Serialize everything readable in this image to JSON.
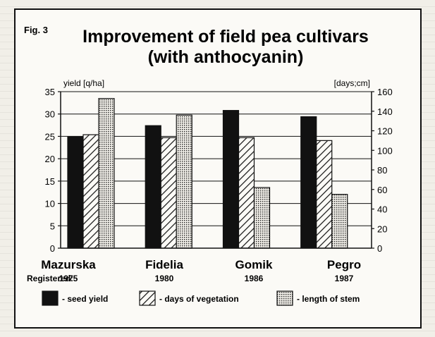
{
  "figure_label": "Fig. 3",
  "colors": {
    "ink": "#111111",
    "paper": "#fbfaf6"
  },
  "chart_data": {
    "type": "bar",
    "title": [
      "Improvement of field pea cultivars",
      "(with anthocyanin)"
    ],
    "categories": [
      "Mazurska",
      "Fidelia",
      "Gomik",
      "Pegro"
    ],
    "registered_label": "Registered:",
    "years": [
      "1975",
      "1980",
      "1986",
      "1987"
    ],
    "ylabel_left": "yield [q/ha]",
    "ylabel_right": "[days;cm]",
    "ylim_left": [
      0,
      35
    ],
    "ylim_right": [
      0,
      160
    ],
    "yticks_left": [
      0,
      5,
      10,
      15,
      20,
      25,
      30,
      35
    ],
    "yticks_right": [
      0,
      20,
      40,
      60,
      80,
      100,
      120,
      140,
      160
    ],
    "grid": true,
    "legend_position": "bottom",
    "series": [
      {
        "name": "- seed yield",
        "axis": "left",
        "pattern": "solid",
        "values": [
          24.9,
          27.4,
          30.8,
          29.4
        ]
      },
      {
        "name": "- days of vegetation",
        "axis": "right",
        "pattern": "hatch",
        "values": [
          116,
          113,
          113,
          110
        ]
      },
      {
        "name": "- length of stem",
        "axis": "right",
        "pattern": "dots",
        "values": [
          153,
          136,
          62,
          55
        ]
      }
    ]
  }
}
